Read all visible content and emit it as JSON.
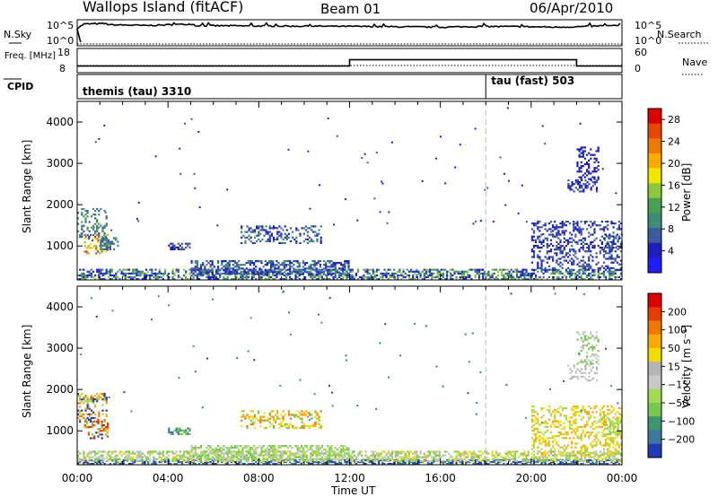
{
  "header": {
    "title": "Wallops Island (fitACF)",
    "beam": "Beam 01",
    "date": "06/Apr/2010"
  },
  "chart_data": [
    {
      "type": "line",
      "id": "nsky-nsearch",
      "ylabel_left": "N.Sky",
      "ylabel_right": "N.Search",
      "yticks_left": [
        "10^5",
        "10^0"
      ],
      "yticks_right": [
        "10^5",
        "10^0"
      ],
      "x_hours": [
        0,
        0.3,
        1.2,
        1.5,
        2.5,
        3.0,
        5.1,
        5.2,
        8,
        12,
        14,
        16,
        18,
        20,
        21,
        22,
        23,
        24
      ],
      "series": [
        {
          "values_log10": [
            3.5,
            4.6,
            4.7,
            4.4,
            4.3,
            4.2,
            4.6,
            4.2,
            4.1,
            4.0,
            3.9,
            3.8,
            4.0,
            3.9,
            3.8,
            3.9,
            4.1,
            4.2
          ]
        }
      ]
    },
    {
      "type": "line",
      "id": "frequency-nave",
      "ylabel_left": "Freq. [MHz]",
      "ylabel_right": "Nave",
      "yticks_left": [
        "18",
        "8"
      ],
      "yticks_right": [
        "60",
        "0"
      ],
      "segments": [
        {
          "x": [
            0,
            12
          ],
          "freq_mhz": 10.7
        },
        {
          "x": [
            12,
            22
          ],
          "freq_mhz": 13.6
        },
        {
          "x": [
            22,
            24
          ],
          "freq_mhz": 10.7
        }
      ],
      "nave_level": 10
    },
    {
      "type": "table",
      "id": "cpid",
      "label": "CPID",
      "modes": [
        {
          "name": "themis (tau) 3310",
          "start_hour": 0
        },
        {
          "name": "tau (fast) 503",
          "start_hour": 18
        }
      ]
    },
    {
      "type": "heatmap",
      "id": "power",
      "ylabel": "Slant Range [km]",
      "xlabel": "Time UT",
      "xticks": [
        "00:00",
        "04:00",
        "08:00",
        "12:00",
        "16:00",
        "20:00",
        "00:00"
      ],
      "yticks": [
        1000,
        2000,
        3000,
        4000
      ],
      "ylim": [
        180,
        4500
      ],
      "xlim_hours": [
        0,
        24
      ],
      "colorbar": {
        "label": "Power [dB]",
        "ticks": [
          "4",
          "8",
          "12",
          "16",
          "20",
          "24",
          "28"
        ],
        "colors": [
          "#1e1efa",
          "#1e1ebe",
          "#3c5aa0",
          "#3c8c78",
          "#46a050",
          "#8cc83c",
          "#f0e600",
          "#faaa00",
          "#f07800",
          "#e64600",
          "#dc0000"
        ]
      },
      "regions": [
        {
          "t": [
            0.0,
            1.3
          ],
          "r": [
            1200,
            1900
          ],
          "c": [
            2,
            3,
            4
          ]
        },
        {
          "t": [
            0.3,
            1.4
          ],
          "r": [
            800,
            1300
          ],
          "c": [
            2,
            5,
            6,
            7,
            9
          ]
        },
        {
          "t": [
            1.0,
            1.8
          ],
          "r": [
            900,
            1200
          ],
          "c": [
            2,
            3
          ]
        },
        {
          "t": [
            7.2,
            10.8
          ],
          "r": [
            1050,
            1500
          ],
          "c": [
            1,
            2,
            3
          ]
        },
        {
          "t": [
            4.0,
            5.0
          ],
          "r": [
            900,
            1100
          ],
          "c": [
            1,
            2
          ]
        },
        {
          "t": [
            0.0,
            24.0
          ],
          "r": [
            180,
            450
          ],
          "c": [
            0,
            1,
            2,
            3,
            4,
            5
          ]
        },
        {
          "t": [
            5.0,
            12.0
          ],
          "r": [
            300,
            650
          ],
          "c": [
            1,
            2,
            3
          ]
        },
        {
          "t": [
            21.6,
            22.9
          ],
          "r": [
            2300,
            2600
          ],
          "c": [
            1,
            2
          ]
        },
        {
          "t": [
            22.0,
            23.0
          ],
          "r": [
            2600,
            3400
          ],
          "c": [
            1
          ]
        },
        {
          "t": [
            23.2,
            24.0
          ],
          "r": [
            900,
            1300
          ],
          "c": [
            2,
            3
          ]
        },
        {
          "t": [
            20.0,
            24.0
          ],
          "r": [
            400,
            1600
          ],
          "c": [
            1,
            2
          ]
        }
      ]
    },
    {
      "type": "heatmap",
      "id": "velocity",
      "ylabel": "Slant Range [km]",
      "xlabel": "Time UT",
      "xticks": [
        "00:00",
        "04:00",
        "08:00",
        "12:00",
        "16:00",
        "20:00",
        "00:00"
      ],
      "yticks": [
        1000,
        2000,
        3000,
        4000
      ],
      "ylim": [
        180,
        4500
      ],
      "xlim_hours": [
        0,
        24
      ],
      "colorbar": {
        "label": "Velocity [m s⁻¹]",
        "ticks": [
          "200",
          "100",
          "50",
          "15",
          "−15",
          "−50",
          "−100",
          "−200"
        ],
        "colors": [
          "#1e3cb4",
          "#3c78a0",
          "#3c966e",
          "#78c850",
          "#a0dc50",
          "#c8c8c8",
          "#b4b4b4",
          "#f0dc00",
          "#faaa00",
          "#f07800",
          "#e63c00",
          "#dc0000"
        ]
      },
      "regions": [
        {
          "t": [
            0.0,
            1.3
          ],
          "r": [
            1200,
            1900
          ],
          "c": [
            0,
            4,
            8,
            9
          ]
        },
        {
          "t": [
            0.3,
            1.4
          ],
          "r": [
            800,
            1300
          ],
          "c": [
            0,
            3,
            8,
            9,
            10
          ]
        },
        {
          "t": [
            7.2,
            10.8
          ],
          "r": [
            1050,
            1500
          ],
          "c": [
            7,
            8,
            9,
            3
          ]
        },
        {
          "t": [
            4.0,
            5.0
          ],
          "r": [
            900,
            1100
          ],
          "c": [
            1,
            3
          ]
        },
        {
          "t": [
            0.0,
            24.0
          ],
          "r": [
            180,
            300
          ],
          "c": [
            0,
            1
          ]
        },
        {
          "t": [
            0.0,
            24.0
          ],
          "r": [
            250,
            500
          ],
          "c": [
            3,
            4,
            5,
            6,
            7
          ]
        },
        {
          "t": [
            5.0,
            12.0
          ],
          "r": [
            300,
            650
          ],
          "c": [
            3,
            4,
            5
          ]
        },
        {
          "t": [
            21.6,
            22.9
          ],
          "r": [
            2200,
            2600
          ],
          "c": [
            5,
            6
          ]
        },
        {
          "t": [
            22.0,
            23.0
          ],
          "r": [
            2600,
            3400
          ],
          "c": [
            5,
            3
          ]
        },
        {
          "t": [
            23.2,
            24.0
          ],
          "r": [
            900,
            1300
          ],
          "c": [
            3,
            4
          ]
        },
        {
          "t": [
            20.0,
            24.0
          ],
          "r": [
            400,
            1600
          ],
          "c": [
            4,
            7,
            8
          ]
        }
      ]
    }
  ]
}
